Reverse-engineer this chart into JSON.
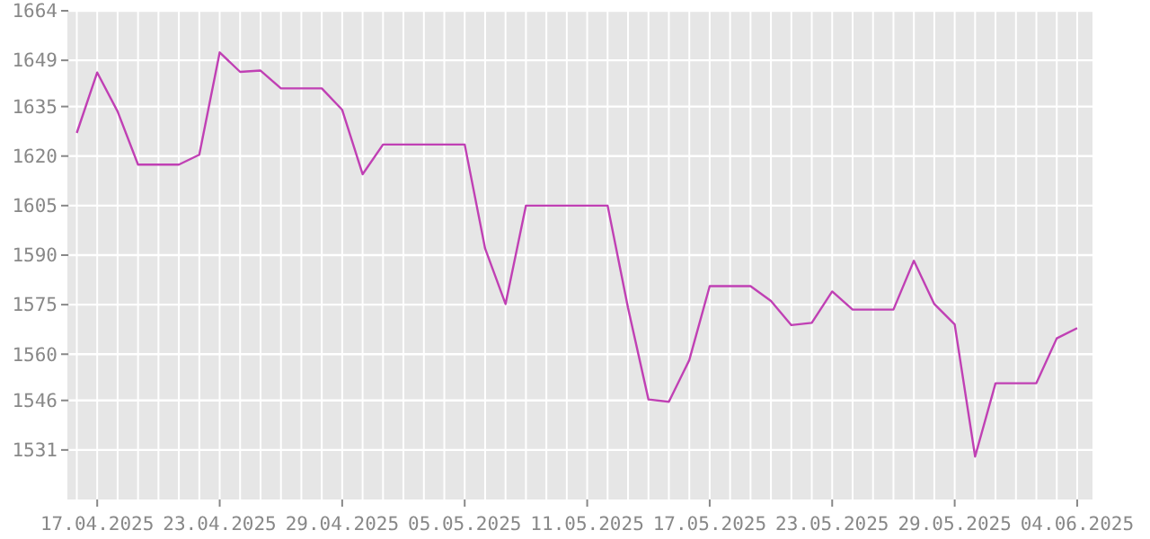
{
  "chart_data": {
    "type": "line",
    "x": [
      "2025-04-16",
      "2025-04-17",
      "2025-04-18",
      "2025-04-19",
      "2025-04-20",
      "2025-04-21",
      "2025-04-22",
      "2025-04-23",
      "2025-04-24",
      "2025-04-25",
      "2025-04-26",
      "2025-04-27",
      "2025-04-28",
      "2025-04-29",
      "2025-04-30",
      "2025-05-01",
      "2025-05-02",
      "2025-05-03",
      "2025-05-04",
      "2025-05-05",
      "2025-05-06",
      "2025-05-07",
      "2025-05-08",
      "2025-05-09",
      "2025-05-10",
      "2025-05-11",
      "2025-05-12",
      "2025-05-13",
      "2025-05-14",
      "2025-05-15",
      "2025-05-16",
      "2025-05-17",
      "2025-05-18",
      "2025-05-19",
      "2025-05-20",
      "2025-05-21",
      "2025-05-22",
      "2025-05-23",
      "2025-05-24",
      "2025-05-25",
      "2025-05-26",
      "2025-05-27",
      "2025-05-28",
      "2025-05-29",
      "2025-05-30",
      "2025-05-31",
      "2025-06-01",
      "2025-06-02",
      "2025-06-03",
      "2025-06-04"
    ],
    "series": [
      {
        "color": "#c040b4",
        "values": [
          1627,
          1645.3,
          1633.5,
          1617.4,
          1617.4,
          1617.4,
          1620.4,
          1651.4,
          1645.5,
          1645.9,
          1640.5,
          1640.5,
          1640.5,
          1634,
          1614.5,
          1623.5,
          1623.5,
          1623.5,
          1623.5,
          1623.5,
          1592,
          1575.2,
          1605,
          1605,
          1605,
          1605,
          1605,
          1574,
          1546.3,
          1545.6,
          1558.2,
          1580.6,
          1580.6,
          1580.6,
          1576.1,
          1568.8,
          1569.5,
          1579,
          1573.5,
          1573.5,
          1573.5,
          1588.3,
          1575.2,
          1569,
          1529,
          1551.2,
          1551.2,
          1551.2,
          1564.8,
          1567.9
        ]
      }
    ],
    "xlim": [
      "2025-04-15T14:00",
      "2025-06-04T18:00"
    ],
    "xticks": [
      {
        "value": "2025-04-17",
        "label": "17.04.2025"
      },
      {
        "value": "2025-04-23",
        "label": "23.04.2025"
      },
      {
        "value": "2025-04-29",
        "label": "29.04.2025"
      },
      {
        "value": "2025-05-05",
        "label": "05.05.2025"
      },
      {
        "value": "2025-05-11",
        "label": "11.05.2025"
      },
      {
        "value": "2025-05-17",
        "label": "17.05.2025"
      },
      {
        "value": "2025-05-23",
        "label": "23.05.2025"
      },
      {
        "value": "2025-05-29",
        "label": "29.05.2025"
      },
      {
        "value": "2025-06-04",
        "label": "04.06.2025"
      }
    ],
    "ylim": [
      1516,
      1664
    ],
    "yticks": [
      1531,
      1546,
      1560,
      1575,
      1590,
      1605,
      1620,
      1635,
      1649,
      1664
    ],
    "grid": true,
    "marker": "none",
    "line_style": "solid"
  }
}
